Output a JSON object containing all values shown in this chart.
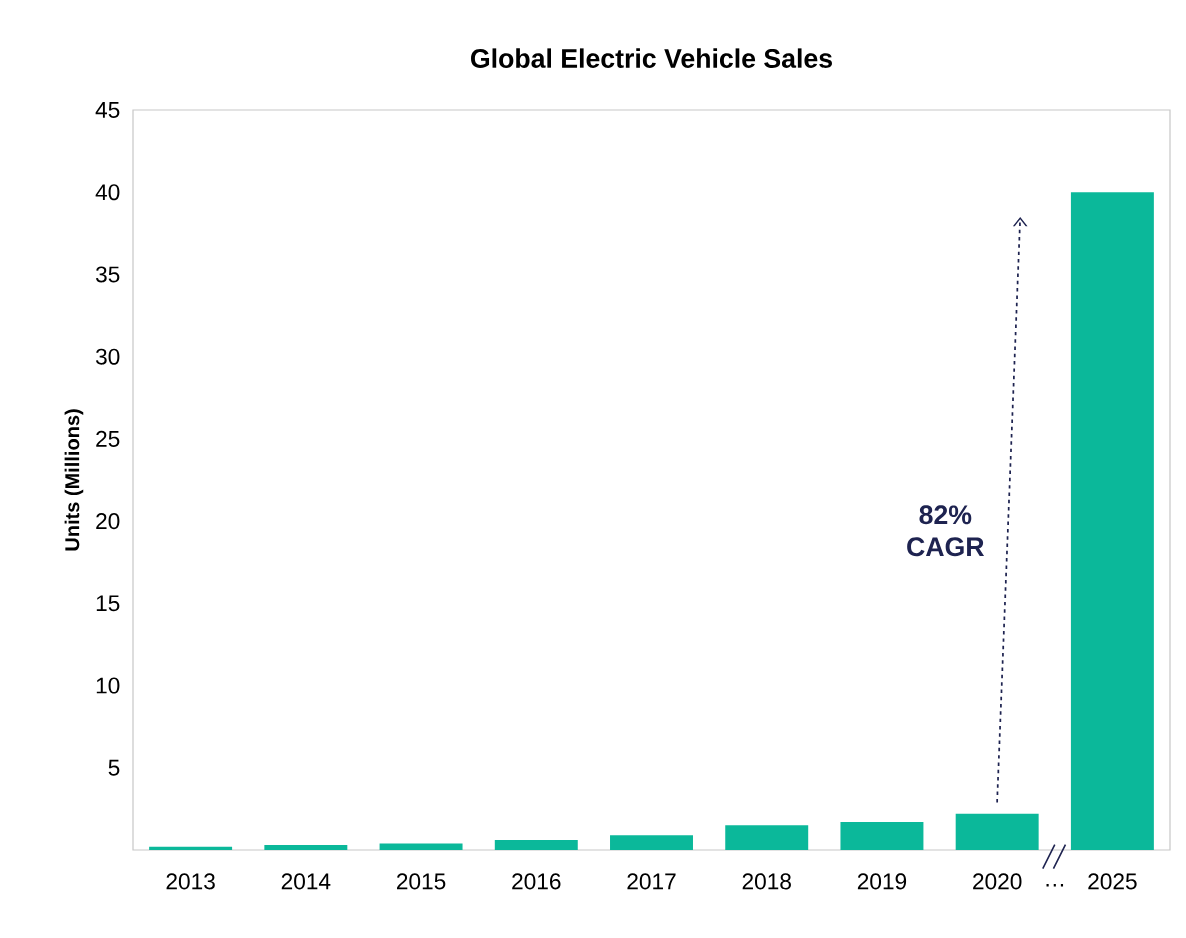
{
  "chart_data": {
    "type": "bar",
    "title": "Global Electric Vehicle Sales",
    "ylabel": "Units (Millions)",
    "categories": [
      "2013",
      "2014",
      "2015",
      "2016",
      "2017",
      "2018",
      "2019",
      "2020",
      "2025"
    ],
    "values": [
      0.2,
      0.3,
      0.4,
      0.6,
      0.9,
      1.5,
      1.7,
      2.2,
      40
    ],
    "color": "#0bb89a",
    "ylim": [
      0,
      45
    ],
    "yticks": [
      5,
      10,
      15,
      20,
      25,
      30,
      35,
      40,
      45
    ],
    "annotations": [
      "82% CAGR",
      "…"
    ]
  }
}
